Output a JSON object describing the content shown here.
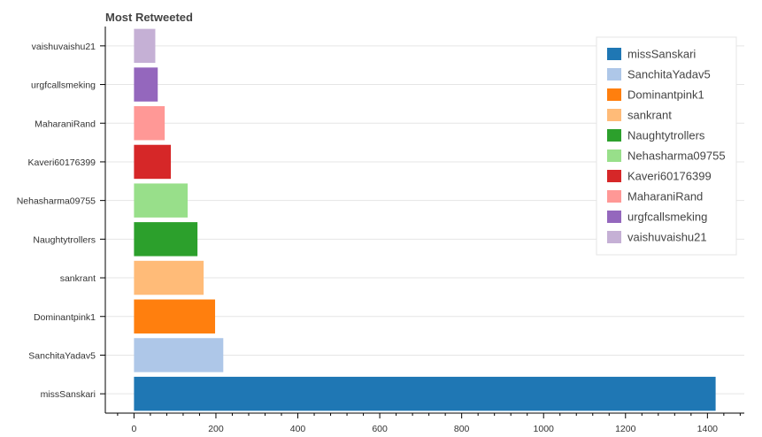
{
  "chart_data": {
    "type": "bar",
    "orientation": "horizontal",
    "title": "Most Retweeted",
    "xlabel": "",
    "ylabel": "",
    "xlim": [
      -70,
      1490
    ],
    "xticks": [
      0,
      200,
      400,
      600,
      800,
      1000,
      1200,
      1400
    ],
    "grid": true,
    "legend_position": "top-right",
    "categories": [
      "missSanskari",
      "SanchitaYadav5",
      "Dominantpink1",
      "sankrant",
      "Naughtytrollers",
      "Nehasharma09755",
      "Kaveri60176399",
      "MaharaniRand",
      "urgfcallsmeking",
      "vaishuvaishu21"
    ],
    "values": [
      1420,
      218,
      198,
      170,
      155,
      131,
      90,
      75,
      58,
      52
    ],
    "colors": [
      "#1f77b4",
      "#aec7e8",
      "#ff7f0e",
      "#ffbb78",
      "#2ca02c",
      "#98df8a",
      "#d62728",
      "#ff9896",
      "#9467bd",
      "#c5b0d5"
    ]
  }
}
